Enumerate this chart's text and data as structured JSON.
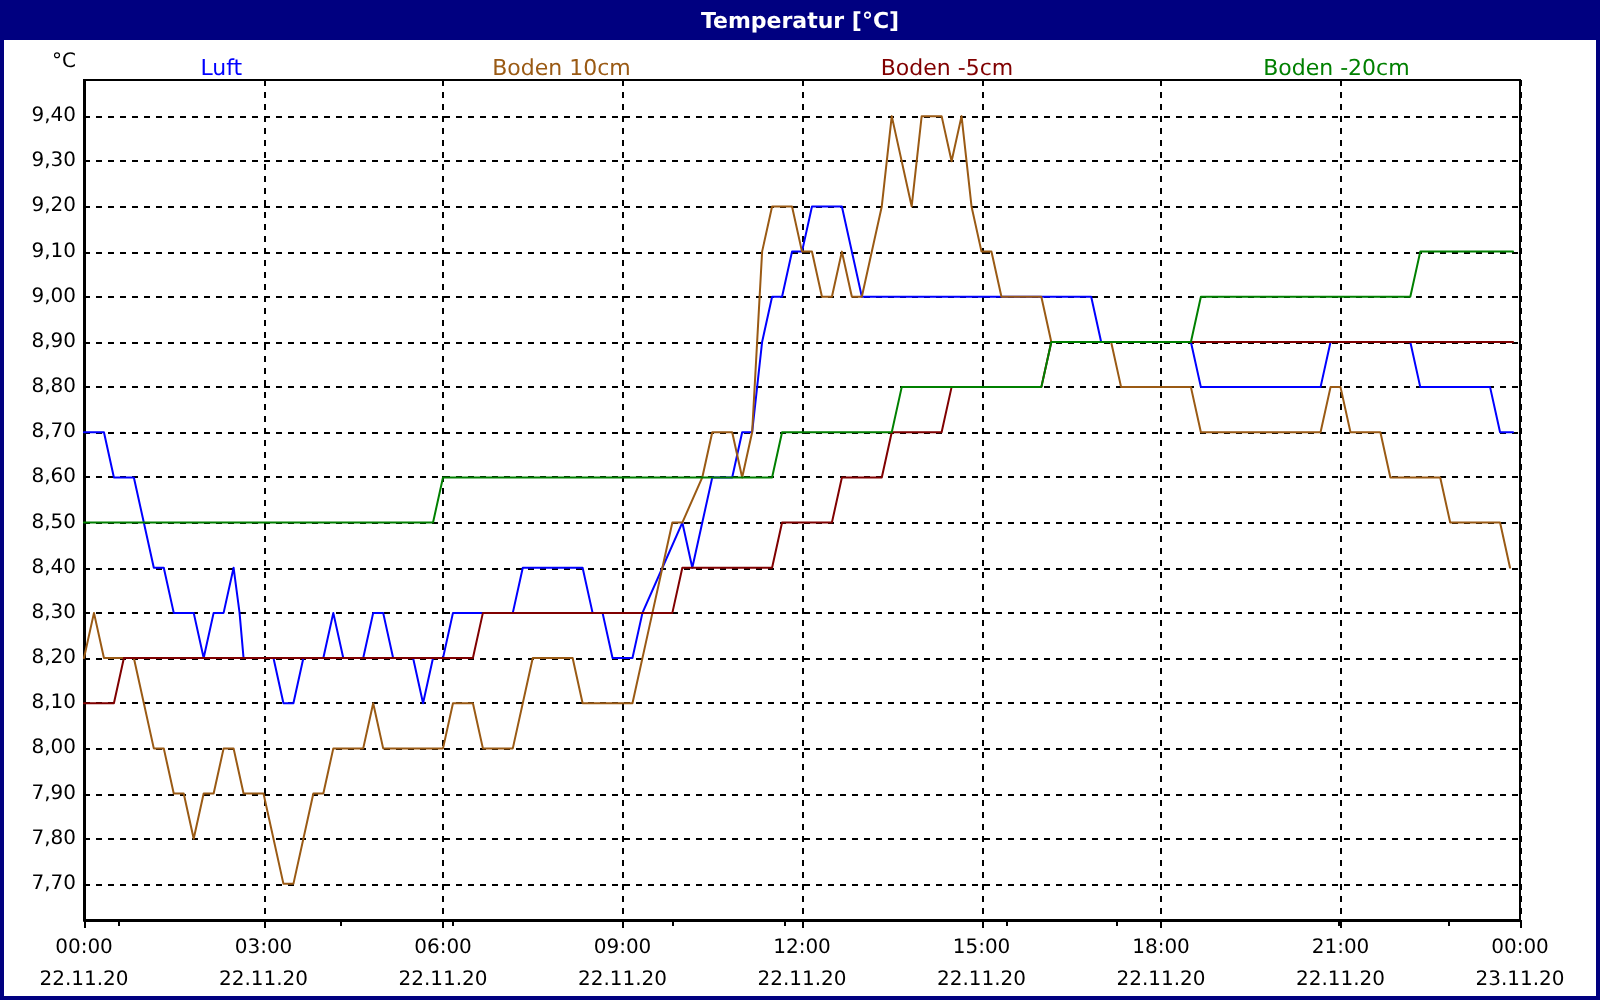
{
  "chart_data": {
    "type": "line",
    "title": "Temperatur [°C]",
    "ylabel": "°C",
    "xlim": [
      "--11-22T00:00",
      "--11-23T00:00"
    ],
    "ylim": [
      7.62,
      9.48
    ],
    "xticks": [
      {
        "value": "--11-22T00:00",
        "label": "00:00\n22.11.20"
      },
      {
        "value": "--11-22T03:00",
        "label": "03:00\n22.11.20"
      },
      {
        "value": "--11-22T06:00",
        "label": "06:00\n22.11.20"
      },
      {
        "value": "--11-22T09:00",
        "label": "09:00\n22.11.20"
      },
      {
        "value": "--11-22T12:00",
        "label": "12:00\n22.11.20"
      },
      {
        "value": "--11-22T15:00",
        "label": "15:00\n22.11.20"
      },
      {
        "value": "--11-22T18:00",
        "label": "18:00\n22.11.20"
      },
      {
        "value": "--11-22T21:00",
        "label": "21:00\n22.11.20"
      },
      {
        "value": "--11-23T00:00",
        "label": "00:00\n23.11.20"
      }
    ],
    "yticks": [
      {
        "value": 7.7,
        "label": "7,70"
      },
      {
        "value": 7.8,
        "label": "7,80"
      },
      {
        "value": 7.9,
        "label": "7,90"
      },
      {
        "value": 8.0,
        "label": "8,00"
      },
      {
        "value": 8.1,
        "label": "8,10"
      },
      {
        "value": 8.2,
        "label": "8,20"
      },
      {
        "value": 8.3,
        "label": "8,30"
      },
      {
        "value": 8.4,
        "label": "8,40"
      },
      {
        "value": 8.5,
        "label": "8,50"
      },
      {
        "value": 8.6,
        "label": "8,60"
      },
      {
        "value": 8.7,
        "label": "8,70"
      },
      {
        "value": 8.8,
        "label": "8,80"
      },
      {
        "value": 8.9,
        "label": "8,90"
      },
      {
        "value": 9.0,
        "label": "9,00"
      },
      {
        "value": 9.1,
        "label": "9,10"
      },
      {
        "value": 9.2,
        "label": "9,20"
      },
      {
        "value": 9.3,
        "label": "9,30"
      },
      {
        "value": 9.4,
        "label": "9,40"
      }
    ],
    "grid": true,
    "legend": "top",
    "marker": "none",
    "line_style": "solid",
    "series": [
      {
        "name": "Luft",
        "color": "#0000ff",
        "x": [
          "--11-22T00:00",
          "--11-22T00:20",
          "--11-22T00:30",
          "--11-22T00:50",
          "--11-22T01:10",
          "--11-22T01:20",
          "--11-22T01:30",
          "--11-22T01:50",
          "--11-22T02:00",
          "--11-22T02:10",
          "--11-22T02:20",
          "--11-22T02:30",
          "--11-22T02:36",
          "--11-22T02:40",
          "--11-22T03:10",
          "--11-22T03:20",
          "--11-22T03:30",
          "--11-22T03:40",
          "--11-22T04:00",
          "--11-22T04:10",
          "--11-22T04:20",
          "--11-22T04:40",
          "--11-22T04:50",
          "--11-22T05:00",
          "--11-22T05:10",
          "--11-22T05:30",
          "--11-22T05:40",
          "--11-22T05:50",
          "--11-22T06:00",
          "--11-22T06:10",
          "--11-22T07:10",
          "--11-22T07:20",
          "--11-22T08:20",
          "--11-22T08:30",
          "--11-22T08:40",
          "--11-22T08:50",
          "--11-22T09:10",
          "--11-22T09:20",
          "--11-22T09:40",
          "--11-22T10:00",
          "--11-22T10:10",
          "--11-22T10:30",
          "--11-22T10:50",
          "--11-22T11:00",
          "--11-22T11:10",
          "--11-22T11:20",
          "--11-22T11:30",
          "--11-22T11:40",
          "--11-22T11:50",
          "--11-22T12:00",
          "--11-22T12:10",
          "--11-22T12:40",
          "--11-22T13:00",
          "--11-22T16:50",
          "--11-22T17:00",
          "--11-22T18:30",
          "--11-22T18:40",
          "--11-22T20:40",
          "--11-22T20:50",
          "--11-22T22:10",
          "--11-22T22:20",
          "--11-22T23:30",
          "--11-22T23:40",
          "--11-22T23:53"
        ],
        "values": [
          8.7,
          8.7,
          8.6,
          8.6,
          8.4,
          8.4,
          8.3,
          8.3,
          8.2,
          8.3,
          8.3,
          8.4,
          8.3,
          8.2,
          8.2,
          8.1,
          8.1,
          8.2,
          8.2,
          8.3,
          8.2,
          8.2,
          8.3,
          8.3,
          8.2,
          8.2,
          8.1,
          8.2,
          8.2,
          8.3,
          8.3,
          8.4,
          8.4,
          8.3,
          8.3,
          8.2,
          8.2,
          8.3,
          8.4,
          8.5,
          8.4,
          8.6,
          8.6,
          8.7,
          8.7,
          8.9,
          9.0,
          9.0,
          9.1,
          9.1,
          9.2,
          9.2,
          9.0,
          9.0,
          8.9,
          8.9,
          8.8,
          8.8,
          8.9,
          8.9,
          8.8,
          8.8,
          8.7,
          8.7
        ]
      },
      {
        "name": "Boden 10cm",
        "color": "#9a5a14",
        "x": [
          "--11-22T00:00",
          "--11-22T00:10",
          "--11-22T00:20",
          "--11-22T00:50",
          "--11-22T01:10",
          "--11-22T01:20",
          "--11-22T01:30",
          "--11-22T01:40",
          "--11-22T01:50",
          "--11-22T02:00",
          "--11-22T02:10",
          "--11-22T02:20",
          "--11-22T02:30",
          "--11-22T02:40",
          "--11-22T03:00",
          "--11-22T03:20",
          "--11-22T03:30",
          "--11-22T03:50",
          "--11-22T04:00",
          "--11-22T04:10",
          "--11-22T04:40",
          "--11-22T04:50",
          "--11-22T05:00",
          "--11-22T06:00",
          "--11-22T06:10",
          "--11-22T06:30",
          "--11-22T06:40",
          "--11-22T07:10",
          "--11-22T07:30",
          "--11-22T08:10",
          "--11-22T08:20",
          "--11-22T09:10",
          "--11-22T09:30",
          "--11-22T09:40",
          "--11-22T09:50",
          "--11-22T10:00",
          "--11-22T10:20",
          "--11-22T10:30",
          "--11-22T10:50",
          "--11-22T11:00",
          "--11-22T11:10",
          "--11-22T11:20",
          "--11-22T11:30",
          "--11-22T11:50",
          "--11-22T12:00",
          "--11-22T12:10",
          "--11-22T12:20",
          "--11-22T12:30",
          "--11-22T12:40",
          "--11-22T12:50",
          "--11-22T13:00",
          "--11-22T13:20",
          "--11-22T13:30",
          "--11-22T13:50",
          "--11-22T14:00",
          "--11-22T14:20",
          "--11-22T14:30",
          "--11-22T14:40",
          "--11-22T14:50",
          "--11-22T15:00",
          "--11-22T15:10",
          "--11-22T15:20",
          "--11-22T16:00",
          "--11-22T16:10",
          "--11-22T17:10",
          "--11-22T17:20",
          "--11-22T18:30",
          "--11-22T18:40",
          "--11-22T20:40",
          "--11-22T20:50",
          "--11-22T21:00",
          "--11-22T21:10",
          "--11-22T21:40",
          "--11-22T21:50",
          "--11-22T22:40",
          "--11-22T22:50",
          "--11-22T23:40",
          "--11-22T23:50"
        ],
        "values": [
          8.2,
          8.3,
          8.2,
          8.2,
          8.0,
          8.0,
          7.9,
          7.9,
          7.8,
          7.9,
          7.9,
          8.0,
          8.0,
          7.9,
          7.9,
          7.7,
          7.7,
          7.9,
          7.9,
          8.0,
          8.0,
          8.1,
          8.0,
          8.0,
          8.1,
          8.1,
          8.0,
          8.0,
          8.2,
          8.2,
          8.1,
          8.1,
          8.3,
          8.4,
          8.5,
          8.5,
          8.6,
          8.7,
          8.7,
          8.6,
          8.7,
          9.1,
          9.2,
          9.2,
          9.1,
          9.1,
          9.0,
          9.0,
          9.1,
          9.0,
          9.0,
          9.2,
          9.4,
          9.2,
          9.4,
          9.4,
          9.3,
          9.4,
          9.2,
          9.1,
          9.1,
          9.0,
          9.0,
          8.9,
          8.9,
          8.8,
          8.8,
          8.7,
          8.7,
          8.8,
          8.8,
          8.7,
          8.7,
          8.6,
          8.6,
          8.5,
          8.5,
          8.4
        ]
      },
      {
        "name": "Boden -5cm",
        "color": "#800000",
        "x": [
          "--11-22T00:00",
          "--11-22T00:30",
          "--11-22T00:40",
          "--11-22T06:30",
          "--11-22T06:40",
          "--11-22T09:50",
          "--11-22T10:00",
          "--11-22T11:30",
          "--11-22T11:40",
          "--11-22T12:30",
          "--11-22T12:40",
          "--11-22T13:20",
          "--11-22T13:30",
          "--11-22T14:20",
          "--11-22T14:30",
          "--11-22T16:00",
          "--11-22T16:10",
          "--11-22T23:53"
        ],
        "values": [
          8.1,
          8.1,
          8.2,
          8.2,
          8.3,
          8.3,
          8.4,
          8.4,
          8.5,
          8.5,
          8.6,
          8.6,
          8.7,
          8.7,
          8.8,
          8.8,
          8.9,
          8.9
        ]
      },
      {
        "name": "Boden -20cm",
        "color": "#008000",
        "x": [
          "--11-22T00:00",
          "--11-22T05:50",
          "--11-22T06:00",
          "--11-22T11:30",
          "--11-22T11:40",
          "--11-22T13:30",
          "--11-22T13:40",
          "--11-22T16:00",
          "--11-22T16:10",
          "--11-22T18:30",
          "--11-22T18:40",
          "--11-22T22:10",
          "--11-22T22:20",
          "--11-22T23:53"
        ],
        "values": [
          8.5,
          8.5,
          8.6,
          8.6,
          8.7,
          8.7,
          8.8,
          8.8,
          8.9,
          8.9,
          9.0,
          9.0,
          9.1,
          9.1
        ]
      }
    ]
  }
}
